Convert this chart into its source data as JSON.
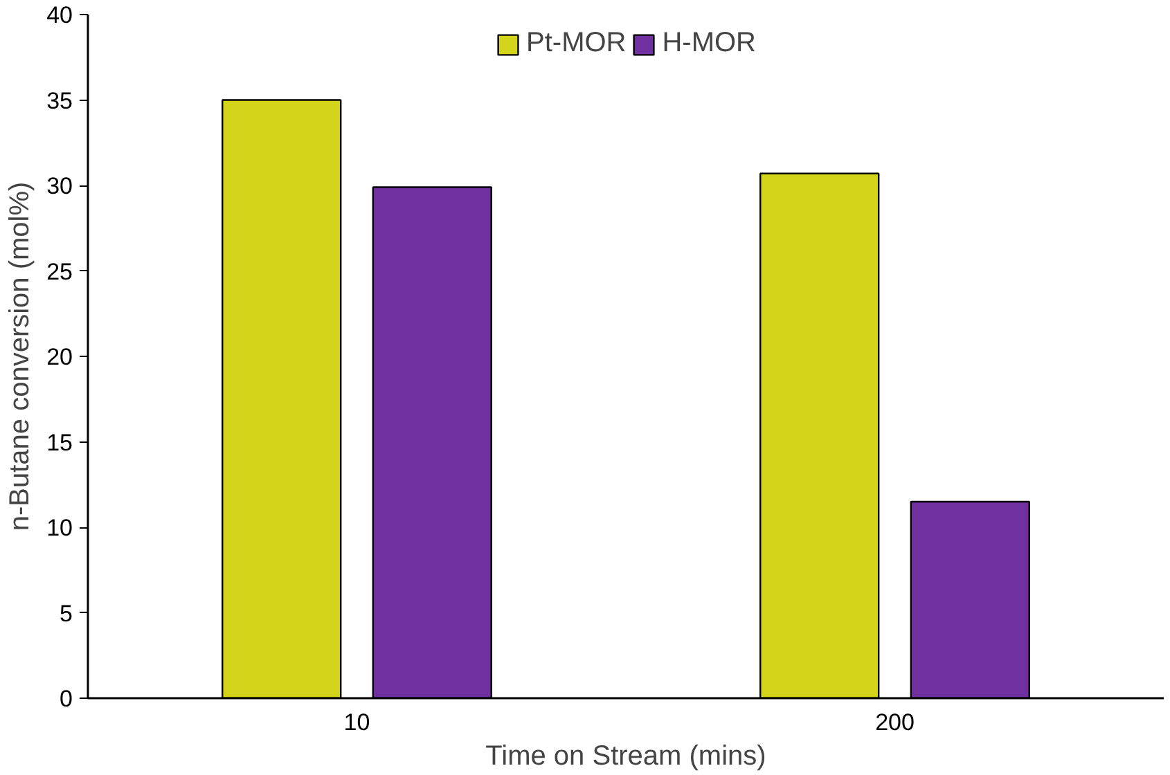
{
  "chart_data": {
    "type": "bar",
    "xlabel": "Time on Stream (mins)",
    "ylabel": "n-Butane conversion (mol%)",
    "categories": [
      "10",
      "200"
    ],
    "series": [
      {
        "name": "Pt-MOR",
        "color": "#d4d41a",
        "values": [
          35,
          30.7
        ]
      },
      {
        "name": "H-MOR",
        "color": "#7030a0",
        "values": [
          29.9,
          11.5
        ]
      }
    ],
    "ylim": [
      0,
      40
    ],
    "yticks": [
      0,
      5,
      10,
      15,
      20,
      25,
      30,
      35,
      40
    ],
    "grid": false,
    "legend": "top"
  }
}
